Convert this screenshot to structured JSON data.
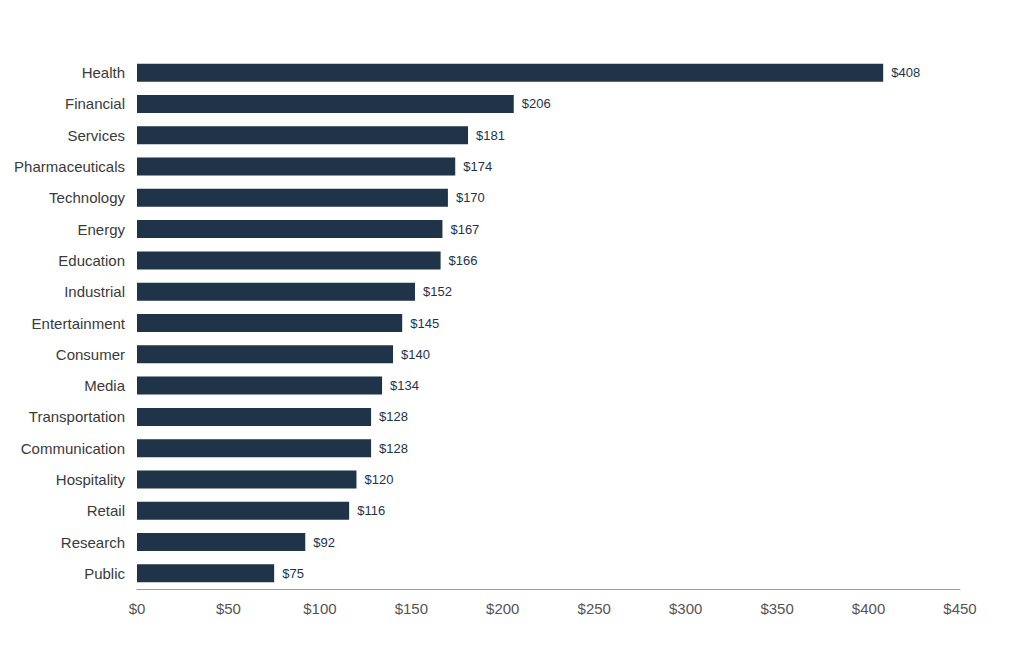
{
  "chart_data": {
    "type": "bar",
    "orientation": "horizontal",
    "categories": [
      "Health",
      "Financial",
      "Services",
      "Pharmaceuticals",
      "Technology",
      "Energy",
      "Education",
      "Industrial",
      "Entertainment",
      "Consumer",
      "Media",
      "Transportation",
      "Communication",
      "Hospitality",
      "Retail",
      "Research",
      "Public"
    ],
    "values": [
      408,
      206,
      181,
      174,
      170,
      167,
      166,
      152,
      145,
      140,
      134,
      128,
      128,
      120,
      116,
      92,
      75
    ],
    "value_labels": [
      "$408",
      "$206",
      "$181",
      "$174",
      "$170",
      "$167",
      "$166",
      "$152",
      "$145",
      "$140",
      "$134",
      "$128",
      "$128",
      "$120",
      "$116",
      "$92",
      "$75"
    ],
    "color": "#1f3349",
    "xlim": [
      0,
      450
    ],
    "xticks": [
      {
        "value": 0,
        "label": "$0"
      },
      {
        "value": 50,
        "label": "$50"
      },
      {
        "value": 100,
        "label": "$100"
      },
      {
        "value": 150,
        "label": "$150"
      },
      {
        "value": 200,
        "label": "$200"
      },
      {
        "value": 250,
        "label": "$250"
      },
      {
        "value": 300,
        "label": "$300"
      },
      {
        "value": 350,
        "label": "$350"
      },
      {
        "value": 400,
        "label": "$400"
      },
      {
        "value": 450,
        "label": "$450"
      }
    ],
    "data_labels": true,
    "grid": false
  }
}
